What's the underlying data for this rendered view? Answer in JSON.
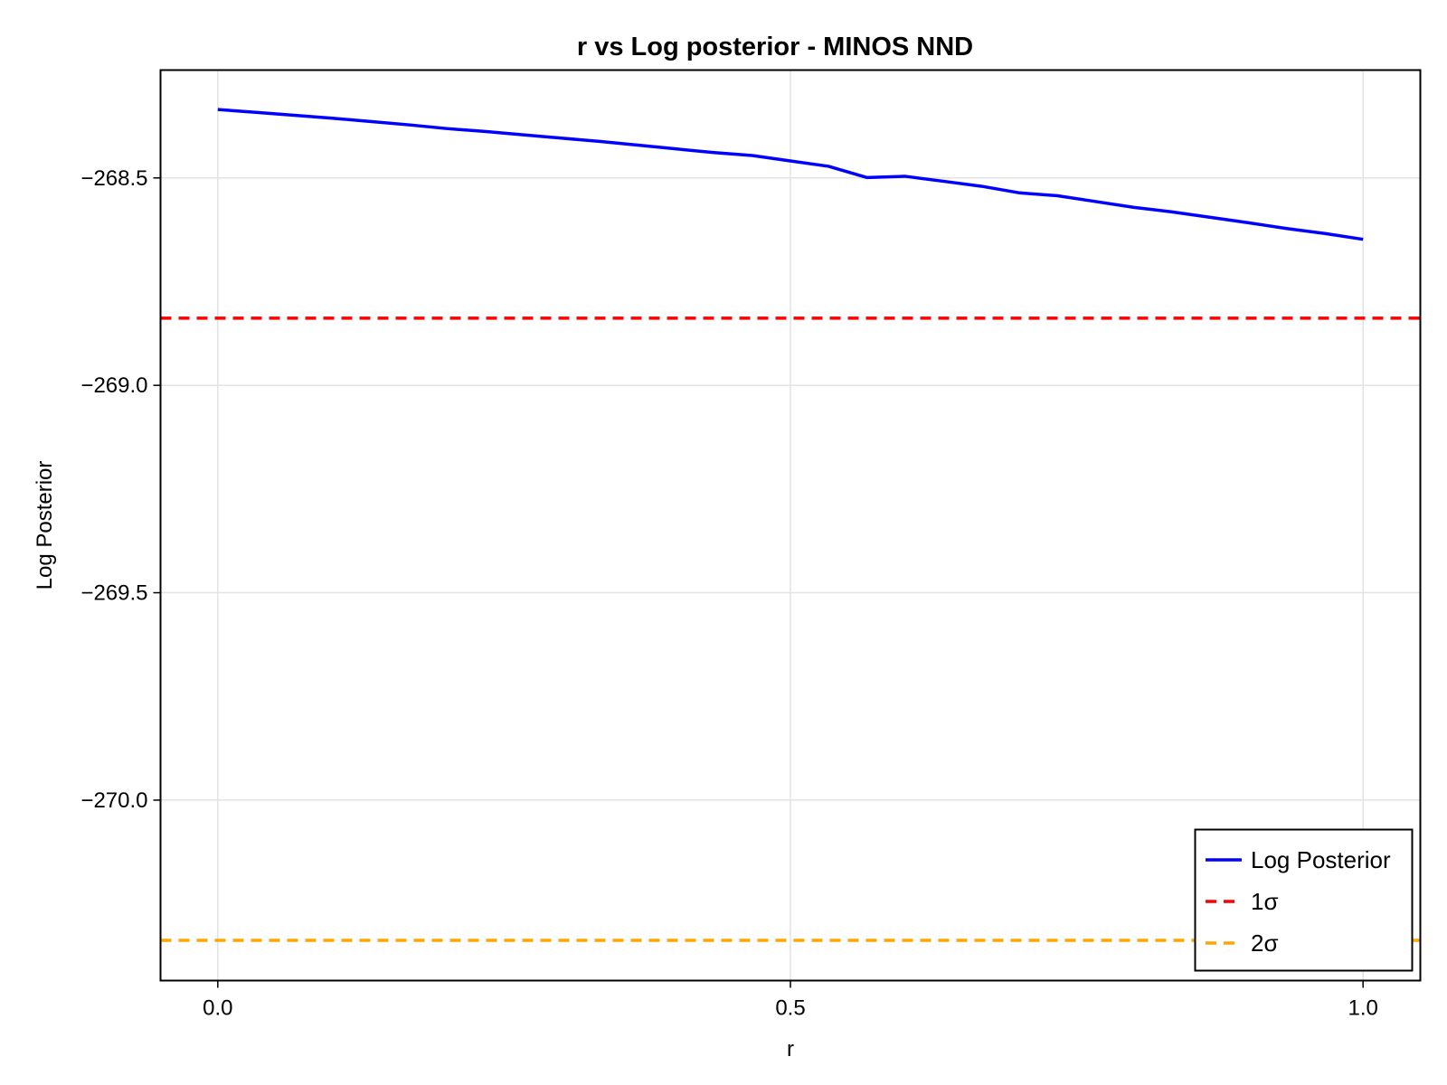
{
  "chart_data": {
    "type": "line",
    "title": "r vs Log posterior - MINOS NND",
    "xlabel": "r",
    "ylabel": "Log Posterior",
    "xlim": [
      -0.05,
      1.05
    ],
    "ylim": [
      -270.435,
      -268.24
    ],
    "x_ticks": [
      0.0,
      0.5,
      1.0
    ],
    "x_tick_labels": [
      "0.0",
      "0.5",
      "1.0"
    ],
    "y_ticks": [
      -268.5,
      -269.0,
      -269.5,
      -270.0
    ],
    "y_tick_labels": [
      "−268.5",
      "−269.0",
      "−269.5",
      "−270.0"
    ],
    "grid": true,
    "legend_position": "bottom-right",
    "series": [
      {
        "name": "Log Posterior",
        "style": "solid",
        "color": "#0000ff",
        "x": [
          0.0,
          0.0333,
          0.0667,
          0.1,
          0.1333,
          0.1667,
          0.2,
          0.2333,
          0.2667,
          0.3,
          0.3333,
          0.3667,
          0.4,
          0.4333,
          0.4667,
          0.5,
          0.5333,
          0.5667,
          0.6,
          0.6333,
          0.6667,
          0.7,
          0.7333,
          0.7667,
          0.8,
          0.8333,
          0.8667,
          0.9,
          0.9333,
          0.9667,
          1.0
        ],
        "y": [
          -268.335,
          -268.342,
          -268.349,
          -268.356,
          -268.364,
          -268.372,
          -268.381,
          -268.388,
          -268.396,
          -268.404,
          -268.412,
          -268.421,
          -268.43,
          -268.439,
          -268.446,
          -268.459,
          -268.472,
          -268.499,
          -268.496,
          -268.508,
          -268.52,
          -268.536,
          -268.543,
          -268.557,
          -268.571,
          -268.582,
          -268.595,
          -268.608,
          -268.622,
          -268.634,
          -268.648
        ]
      },
      {
        "name": "1σ",
        "style": "dashed",
        "color": "#ff0000",
        "y": -268.838
      },
      {
        "name": "2σ",
        "style": "dashed",
        "color": "#ffa500",
        "y": -270.338
      }
    ]
  }
}
